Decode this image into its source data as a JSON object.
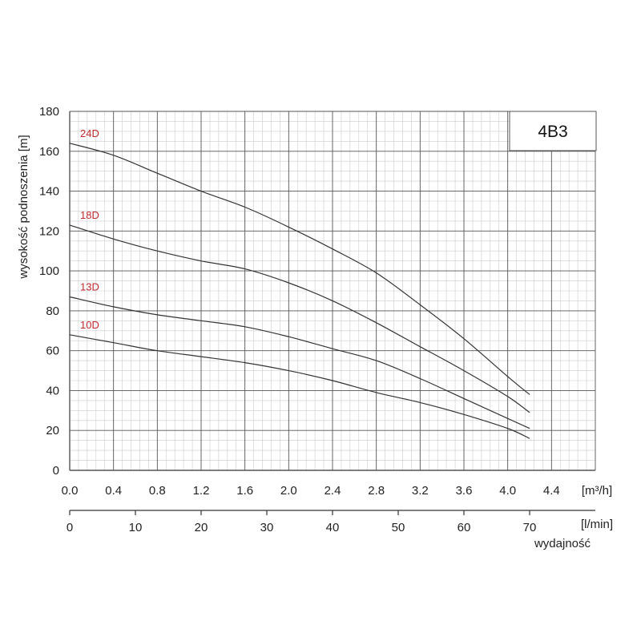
{
  "chart_data": {
    "type": "line",
    "model": "4B3",
    "ylabel": "wysokość podnoszenia [m]",
    "xlabel": "wydajność",
    "ylim": [
      0,
      180
    ],
    "y_ticks": [
      "0",
      "20",
      "40",
      "60",
      "80",
      "100",
      "120",
      "140",
      "160",
      "180"
    ],
    "x_m3h": {
      "unit": "[m³/h]",
      "ticks": [
        "0.0",
        "0.4",
        "0.8",
        "1.2",
        "1.6",
        "2.0",
        "2.4",
        "2.8",
        "3.2",
        "3.6",
        "4.0",
        "4.4"
      ],
      "range": [
        0,
        4.8
      ]
    },
    "x_lmin": {
      "unit": "[l/min]",
      "ticks": [
        "0",
        "10",
        "20",
        "30",
        "40",
        "50",
        "60",
        "70"
      ]
    },
    "grid": true,
    "series": [
      {
        "name": "24D",
        "x": [
          0,
          0.4,
          0.8,
          1.2,
          1.6,
          2.0,
          2.4,
          2.8,
          3.2,
          3.6,
          4.0,
          4.2
        ],
        "y": [
          164,
          158,
          149,
          140,
          132,
          122,
          111,
          99,
          83,
          66,
          47,
          38
        ]
      },
      {
        "name": "18D",
        "x": [
          0,
          0.4,
          0.8,
          1.2,
          1.6,
          2.0,
          2.4,
          2.8,
          3.2,
          3.6,
          4.0,
          4.2
        ],
        "y": [
          123,
          116,
          110,
          105,
          101,
          94,
          85,
          74,
          62,
          50,
          37,
          29
        ]
      },
      {
        "name": "13D",
        "x": [
          0,
          0.4,
          0.8,
          1.2,
          1.6,
          2.0,
          2.4,
          2.8,
          3.2,
          3.6,
          4.0,
          4.2
        ],
        "y": [
          87,
          82,
          78,
          75,
          72,
          67,
          61,
          55,
          46,
          36,
          26,
          21
        ]
      },
      {
        "name": "10D",
        "x": [
          0,
          0.4,
          0.8,
          1.2,
          1.6,
          2.0,
          2.4,
          2.8,
          3.2,
          3.6,
          4.0,
          4.2
        ],
        "y": [
          68,
          64,
          60,
          57,
          54,
          50,
          45,
          39,
          34,
          28,
          21,
          16
        ]
      }
    ],
    "colors": {
      "curve": "#333333",
      "label": "#c0282d",
      "grid_major": "#555555",
      "grid_minor": "#cccccc"
    }
  }
}
